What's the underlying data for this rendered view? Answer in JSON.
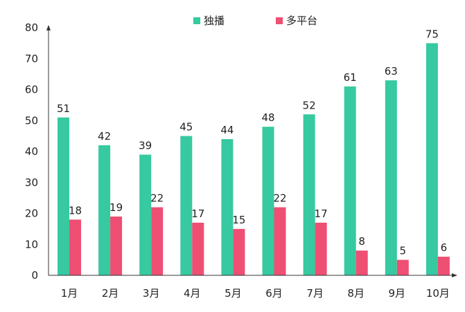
{
  "chart_data": {
    "type": "bar",
    "categories": [
      "1月",
      "2月",
      "3月",
      "4月",
      "5月",
      "6月",
      "7月",
      "8月",
      "9月",
      "10月"
    ],
    "series": [
      {
        "name": "独播",
        "color": "#37C9A0",
        "values": [
          51,
          42,
          39,
          45,
          44,
          48,
          52,
          61,
          63,
          75
        ]
      },
      {
        "name": "多平台",
        "color": "#EE4F73",
        "values": [
          18,
          19,
          22,
          17,
          15,
          22,
          17,
          8,
          5,
          6
        ]
      }
    ],
    "ylim": [
      0,
      80
    ],
    "yticks": [
      0,
      10,
      20,
      30,
      40,
      50,
      60,
      70,
      80
    ],
    "grid": false,
    "legend": "top-center"
  }
}
